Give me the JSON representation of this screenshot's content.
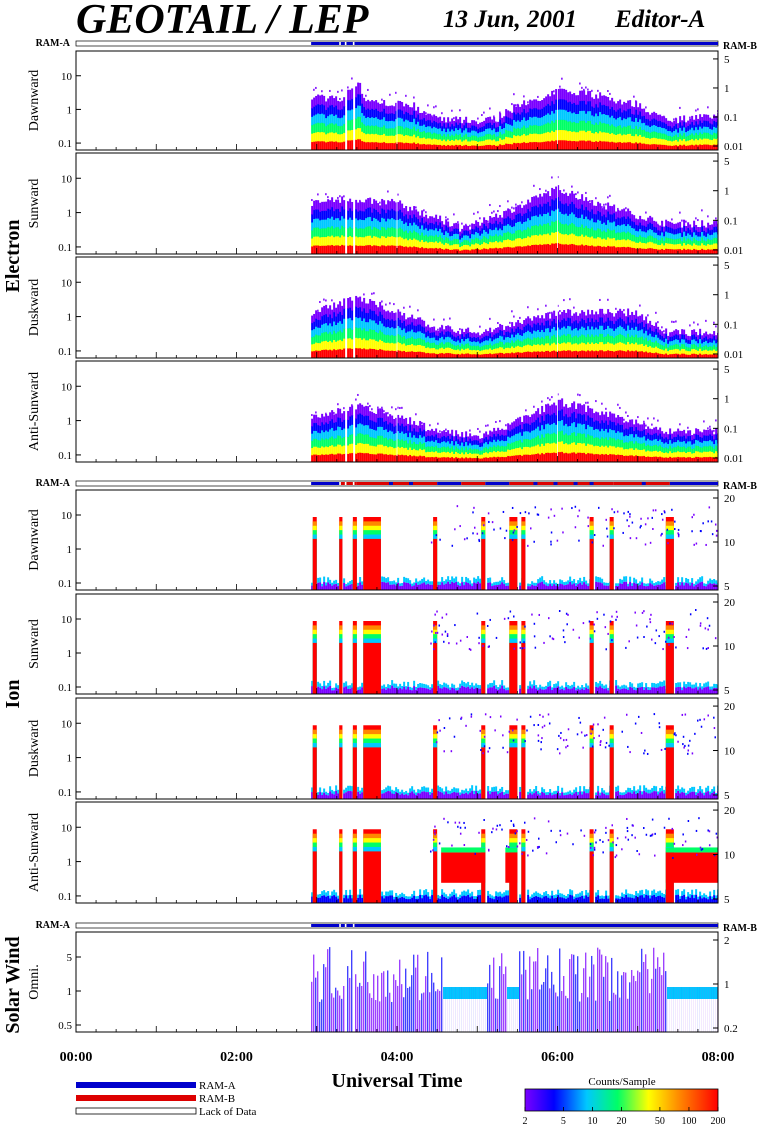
{
  "header": {
    "title": "GEOTAIL / LEP",
    "date": "13 Jun, 2001",
    "editor": "Editor-A"
  },
  "ram_labels": {
    "left": "RAM-A",
    "right": "RAM-B"
  },
  "time_axis": {
    "title": "Universal Time",
    "start_hours": 0,
    "end_hours": 8,
    "major_ticks": [
      "00:00",
      "02:00",
      "04:00",
      "06:00",
      "08:00"
    ]
  },
  "legend": {
    "items": [
      {
        "label": "RAM-A",
        "color": "#0000cc"
      },
      {
        "label": "RAM-B",
        "color": "#dd0000"
      },
      {
        "label": "Lack of Data",
        "color": "#ffffff"
      }
    ]
  },
  "colorbar": {
    "title": "Counts/Sample",
    "ticks": [
      "2",
      "5",
      "10",
      "20",
      "50",
      "100",
      "200"
    ],
    "colors": [
      "#6a00ff",
      "#0000ff",
      "#00c8ff",
      "#00ff66",
      "#ffff00",
      "#ff8800",
      "#ff0000"
    ]
  },
  "chart_data": [
    {
      "type": "heatmap",
      "group": "Electron",
      "panel": "Dawnward",
      "yticks_left": [
        "10",
        "1",
        "0.1"
      ],
      "yticks_right": [
        "5",
        "1",
        "0.1",
        "0.01"
      ],
      "data_start_hours": 2.93,
      "activity": [
        [
          2.93,
          0.55
        ],
        [
          3.3,
          0.5
        ],
        [
          3.5,
          0.7
        ],
        [
          3.6,
          0.5
        ],
        [
          4.2,
          0.45
        ],
        [
          4.5,
          0.3
        ],
        [
          5.2,
          0.3
        ],
        [
          5.5,
          0.45
        ],
        [
          5.8,
          0.5
        ],
        [
          6.0,
          0.6
        ],
        [
          6.5,
          0.55
        ],
        [
          7.0,
          0.45
        ],
        [
          7.35,
          0.3
        ],
        [
          8.0,
          0.35
        ]
      ]
    },
    {
      "type": "heatmap",
      "group": "Electron",
      "panel": "Sunward",
      "yticks_left": [
        "10",
        "1",
        "0.1"
      ],
      "yticks_right": [
        "5",
        "1",
        "0.1",
        "0.01"
      ],
      "data_start_hours": 2.93,
      "activity": [
        [
          2.93,
          0.5
        ],
        [
          3.4,
          0.55
        ],
        [
          4.0,
          0.5
        ],
        [
          4.5,
          0.35
        ],
        [
          4.8,
          0.25
        ],
        [
          5.0,
          0.3
        ],
        [
          5.6,
          0.5
        ],
        [
          6.0,
          0.65
        ],
        [
          6.5,
          0.5
        ],
        [
          7.35,
          0.3
        ],
        [
          8.0,
          0.3
        ]
      ]
    },
    {
      "type": "heatmap",
      "group": "Electron",
      "panel": "Duskward",
      "yticks_left": [
        "10",
        "1",
        "0.1"
      ],
      "yticks_right": [
        "5",
        "1",
        "0.1",
        "0.01"
      ],
      "data_start_hours": 2.93,
      "activity": [
        [
          2.93,
          0.45
        ],
        [
          3.5,
          0.6
        ],
        [
          4.0,
          0.45
        ],
        [
          4.5,
          0.3
        ],
        [
          5.0,
          0.25
        ],
        [
          5.5,
          0.35
        ],
        [
          6.0,
          0.45
        ],
        [
          7.0,
          0.45
        ],
        [
          7.35,
          0.25
        ],
        [
          8.0,
          0.25
        ]
      ]
    },
    {
      "type": "heatmap",
      "group": "Electron",
      "panel": "Anti-Sunward",
      "yticks_left": [
        "10",
        "1",
        "0.1"
      ],
      "yticks_right": [
        "5",
        "1",
        "0.1",
        "0.01"
      ],
      "data_start_hours": 2.93,
      "activity": [
        [
          2.93,
          0.45
        ],
        [
          3.5,
          0.55
        ],
        [
          4.0,
          0.45
        ],
        [
          4.5,
          0.3
        ],
        [
          5.0,
          0.25
        ],
        [
          5.5,
          0.4
        ],
        [
          6.0,
          0.6
        ],
        [
          6.5,
          0.5
        ],
        [
          7.35,
          0.3
        ],
        [
          8.0,
          0.3
        ]
      ]
    },
    {
      "type": "heatmap",
      "group": "Ion",
      "panel": "Dawnward",
      "yticks_left": [
        "10",
        "1",
        "0.1"
      ],
      "yticks_right": [
        "20",
        "10",
        "5"
      ],
      "bursts": [
        [
          2.95,
          3.0
        ],
        [
          3.28,
          3.32
        ],
        [
          3.45,
          3.5
        ],
        [
          3.58,
          3.8
        ],
        [
          4.45,
          4.5
        ],
        [
          5.05,
          5.1
        ],
        [
          5.4,
          5.5
        ],
        [
          5.55,
          5.6
        ],
        [
          6.4,
          6.45
        ],
        [
          6.65,
          6.7
        ],
        [
          7.35,
          7.45
        ]
      ]
    },
    {
      "type": "heatmap",
      "group": "Ion",
      "panel": "Sunward",
      "yticks_left": [
        "10",
        "1",
        "0.1"
      ],
      "yticks_right": [
        "20",
        "10",
        "5"
      ],
      "bursts": [
        [
          2.95,
          3.0
        ],
        [
          3.28,
          3.32
        ],
        [
          3.45,
          3.5
        ],
        [
          3.58,
          3.8
        ],
        [
          4.45,
          4.5
        ],
        [
          5.05,
          5.1
        ],
        [
          5.4,
          5.5
        ],
        [
          5.55,
          5.6
        ],
        [
          6.4,
          6.45
        ],
        [
          6.65,
          6.7
        ],
        [
          7.35,
          7.45
        ]
      ]
    },
    {
      "type": "heatmap",
      "group": "Ion",
      "panel": "Duskward",
      "yticks_left": [
        "10",
        "1",
        "0.1"
      ],
      "yticks_right": [
        "20",
        "10",
        "5"
      ],
      "bursts": [
        [
          2.95,
          3.0
        ],
        [
          3.28,
          3.32
        ],
        [
          3.45,
          3.5
        ],
        [
          3.58,
          3.8
        ],
        [
          4.45,
          4.5
        ],
        [
          5.05,
          5.1
        ],
        [
          5.4,
          5.5
        ],
        [
          5.55,
          5.6
        ],
        [
          6.4,
          6.45
        ],
        [
          6.65,
          6.7
        ],
        [
          7.35,
          7.45
        ]
      ]
    },
    {
      "type": "heatmap",
      "group": "Ion",
      "panel": "Anti-Sunward",
      "yticks_left": [
        "10",
        "1",
        "0.1"
      ],
      "yticks_right": [
        "20",
        "10",
        "5"
      ],
      "bursts": [
        [
          2.95,
          3.0
        ],
        [
          3.28,
          3.32
        ],
        [
          3.45,
          3.5
        ],
        [
          3.58,
          3.8
        ],
        [
          4.45,
          4.5
        ],
        [
          5.05,
          5.1
        ],
        [
          5.4,
          5.5
        ],
        [
          5.55,
          5.6
        ],
        [
          6.4,
          6.45
        ],
        [
          6.65,
          6.7
        ],
        [
          7.35,
          7.45
        ]
      ]
    },
    {
      "type": "heatmap",
      "group": "Solar Wind",
      "panel": "Omni.",
      "yticks_left": [
        "5",
        "1",
        "0.5"
      ],
      "yticks_right": [
        "2",
        "1",
        "0.2"
      ],
      "data_start_hours": 2.93,
      "bands": [
        [
          4.55,
          5.1
        ],
        [
          5.35,
          5.5
        ],
        [
          7.35,
          8.0
        ]
      ]
    }
  ],
  "groups": {
    "electron": "Electron",
    "ion": "Ion",
    "solar_wind": "Solar Wind"
  }
}
